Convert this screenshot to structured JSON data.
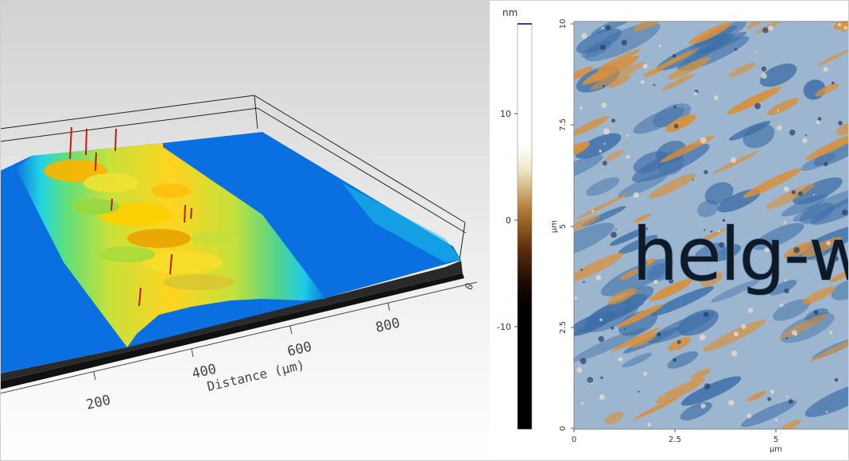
{
  "left_panel": {
    "x_axis_label": "Distance (µm)",
    "x_ticks": [
      "200",
      "400",
      "600",
      "800",
      "0"
    ]
  },
  "right_panel": {
    "colorbar": {
      "unit": "nm",
      "ticks": [
        "10",
        "0",
        "-10"
      ],
      "colors": {
        "top": "#ffffff",
        "upper": "#f1e6c7",
        "mid": "#b07a33",
        "low": "#3a1505",
        "bottom": "#000000"
      }
    },
    "map": {
      "y_axis_label": "µm",
      "y_ticks": [
        "10",
        "7.5",
        "5",
        "2.5",
        "0"
      ],
      "x_axis_label": "µm",
      "x_ticks": [
        "0",
        "2.5",
        "5"
      ],
      "engraved_text": "helg-w",
      "colors": {
        "blue": "#3e6fa8",
        "orange": "#d9903a",
        "cream": "#eee3cc"
      }
    }
  }
}
